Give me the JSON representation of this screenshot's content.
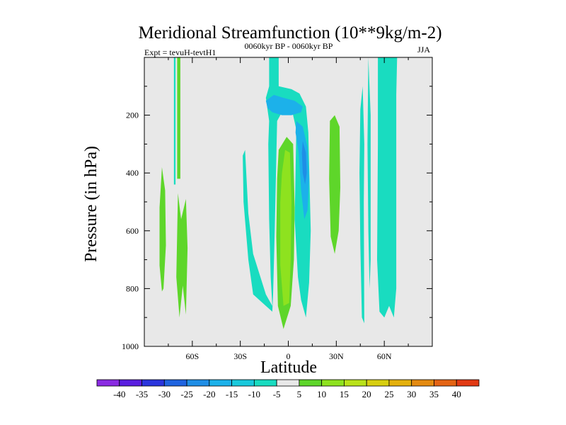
{
  "chart_data": {
    "type": "contour",
    "title": "Meridional Streamfunction (10**9kg/m-2)",
    "left_string": "Expt = tevuH-tevtH1",
    "center_string": "0060kyr BP - 0060kyr BP",
    "right_string": "JJA",
    "xlabel": "Latitude",
    "ylabel": "Pressure (in hPa)",
    "xlim": [
      -90,
      90
    ],
    "ylim": [
      1000,
      0
    ],
    "x_ticks": [
      -60,
      -30,
      0,
      30,
      60
    ],
    "x_tick_labels": [
      "60S",
      "30S",
      "0",
      "30N",
      "60N"
    ],
    "y_ticks": [
      200,
      400,
      600,
      800,
      1000
    ],
    "y_tick_labels": [
      "200",
      "400",
      "600",
      "800",
      "1000"
    ],
    "background_color": "#e8e8e8",
    "colorbar": {
      "levels": [
        -40,
        -35,
        -30,
        -25,
        -20,
        -15,
        -10,
        -5,
        5,
        10,
        15,
        20,
        25,
        30,
        35,
        40
      ],
      "labels": [
        "-40",
        "-35",
        "-30",
        "-25",
        "-20",
        "-15",
        "-10",
        "-5",
        "5",
        "10",
        "15",
        "20",
        "25",
        "30",
        "35",
        "40"
      ],
      "colors": [
        "#8a2be2",
        "#5a1ee0",
        "#2a35dd",
        "#1f64e0",
        "#1f8ee6",
        "#1cb1ea",
        "#19c9dc",
        "#19dcc0",
        "#e8e8e8",
        "#5ed62a",
        "#8ee21f",
        "#b9e21a",
        "#d8cf10",
        "#e4b00c",
        "#e48a10",
        "#e46414",
        "#e23a14"
      ]
    },
    "regions": [
      {
        "name": "contour-region-left-thin-strip",
        "color": "#19dcc0",
        "points": [
          [
            -71.5,
            0
          ],
          [
            -70.5,
            0
          ],
          [
            -70.5,
            440
          ],
          [
            -71.5,
            440
          ]
        ]
      },
      {
        "name": "contour-region-left-green-strip",
        "color": "#5ed62a",
        "points": [
          [
            -69.5,
            0
          ],
          [
            -67.5,
            0
          ],
          [
            -67.5,
            420
          ],
          [
            -69.5,
            420
          ]
        ]
      },
      {
        "name": "contour-region-left-green-lobe-a",
        "color": "#5ed62a",
        "points": [
          [
            -79,
            380
          ],
          [
            -77,
            460
          ],
          [
            -76.5,
            650
          ],
          [
            -78,
            800
          ],
          [
            -79,
            810
          ],
          [
            -80.5,
            720
          ],
          [
            -80.5,
            520
          ]
        ]
      },
      {
        "name": "contour-region-left-green-lobe-b",
        "color": "#5ed62a",
        "points": [
          [
            -69,
            470
          ],
          [
            -67,
            560
          ],
          [
            -64,
            490
          ],
          [
            -63,
            660
          ],
          [
            -64,
            890
          ],
          [
            -66,
            790
          ],
          [
            -68,
            900
          ],
          [
            -70,
            760
          ]
        ]
      },
      {
        "name": "contour-region-southern-cyan-column",
        "color": "#19dcc0",
        "points": [
          [
            -27,
            320
          ],
          [
            -25,
            540
          ],
          [
            -22,
            680
          ],
          [
            -18,
            750
          ],
          [
            -14,
            820
          ],
          [
            -10,
            860
          ],
          [
            -11,
            760
          ],
          [
            -12,
            560
          ],
          [
            -12.5,
            300
          ],
          [
            -12,
            220
          ],
          [
            -14,
            140
          ],
          [
            -12,
            100
          ],
          [
            -12,
            0
          ],
          [
            -6,
            0
          ],
          [
            -6,
            100
          ],
          [
            2,
            110
          ],
          [
            7,
            125
          ],
          [
            11,
            170
          ],
          [
            12.5,
            260
          ],
          [
            14,
            600
          ],
          [
            13,
            780
          ],
          [
            11,
            900
          ],
          [
            8,
            840
          ],
          [
            6,
            760
          ],
          [
            4,
            560
          ],
          [
            5,
            250
          ],
          [
            2,
            175
          ],
          [
            -3,
            180
          ],
          [
            -7,
            220
          ],
          [
            -8.5,
            600
          ],
          [
            -9.5,
            820
          ],
          [
            -10,
            880
          ],
          [
            -14,
            860
          ],
          [
            -22,
            820
          ],
          [
            -25,
            700
          ],
          [
            -28,
            500
          ],
          [
            -28.5,
            340
          ]
        ]
      },
      {
        "name": "contour-region-upper-blue-band",
        "color": "#1cb1ea",
        "points": [
          [
            -14,
            150
          ],
          [
            -9,
            130
          ],
          [
            -3,
            140
          ],
          [
            4,
            150
          ],
          [
            9,
            170
          ],
          [
            8,
            190
          ],
          [
            2,
            200
          ],
          [
            -4,
            200
          ],
          [
            -10,
            190
          ],
          [
            -13,
            175
          ]
        ]
      },
      {
        "name": "contour-region-northern-blue-core",
        "color": "#1cb1ea",
        "points": [
          [
            5,
            220
          ],
          [
            9,
            240
          ],
          [
            12,
            310
          ],
          [
            13,
            420
          ],
          [
            12,
            530
          ],
          [
            10,
            560
          ],
          [
            8,
            460
          ],
          [
            6.5,
            330
          ],
          [
            4.5,
            260
          ]
        ]
      },
      {
        "name": "contour-region-northern-deep-core",
        "color": "#1f8ee6",
        "points": [
          [
            9,
            290
          ],
          [
            11,
            330
          ],
          [
            11.5,
            400
          ],
          [
            10.5,
            440
          ],
          [
            9,
            400
          ],
          [
            8.5,
            330
          ]
        ]
      },
      {
        "name": "contour-region-equatorial-green-column",
        "color": "#5ed62a",
        "points": [
          [
            -6,
            320
          ],
          [
            -1,
            275
          ],
          [
            3,
            300
          ],
          [
            4,
            520
          ],
          [
            3.5,
            700
          ],
          [
            1.5,
            860
          ],
          [
            -3,
            940
          ],
          [
            -6.5,
            860
          ],
          [
            -7.5,
            620
          ],
          [
            -7,
            420
          ]
        ]
      },
      {
        "name": "contour-region-equatorial-yellowgreen-core",
        "color": "#8ee21f",
        "points": [
          [
            -4,
            400
          ],
          [
            -2,
            320
          ],
          [
            1,
            330
          ],
          [
            2,
            500
          ],
          [
            1.5,
            700
          ],
          [
            0.5,
            850
          ],
          [
            -3,
            860
          ],
          [
            -5,
            720
          ],
          [
            -5,
            500
          ]
        ]
      },
      {
        "name": "contour-region-30n-green-column",
        "color": "#5ed62a",
        "points": [
          [
            26,
            220
          ],
          [
            29,
            200
          ],
          [
            32,
            240
          ],
          [
            32.5,
            450
          ],
          [
            31.5,
            600
          ],
          [
            29,
            680
          ],
          [
            26.5,
            620
          ],
          [
            25.5,
            420
          ]
        ]
      },
      {
        "name": "contour-region-45n-cyan-strip",
        "color": "#19dcc0",
        "points": [
          [
            46.5,
            100
          ],
          [
            47.5,
            300
          ],
          [
            47.2,
            500
          ],
          [
            47.5,
            920
          ],
          [
            46,
            900
          ],
          [
            45,
            650
          ],
          [
            44.5,
            400
          ],
          [
            45,
            180
          ]
        ]
      },
      {
        "name": "contour-region-52n-cyan-strip",
        "color": "#19dcc0",
        "points": [
          [
            50,
            0
          ],
          [
            51.5,
            200
          ],
          [
            51.5,
            700
          ],
          [
            50.8,
            800
          ],
          [
            50,
            600
          ],
          [
            49.5,
            300
          ]
        ]
      },
      {
        "name": "contour-region-60n-cyan-column",
        "color": "#19dcc0",
        "points": [
          [
            56,
            0
          ],
          [
            68,
            0
          ],
          [
            67.5,
            130
          ],
          [
            67.5,
            800
          ],
          [
            66,
            900
          ],
          [
            63,
            860
          ],
          [
            60,
            900
          ],
          [
            57,
            880
          ],
          [
            55.5,
            700
          ],
          [
            56,
            300
          ]
        ]
      }
    ]
  }
}
